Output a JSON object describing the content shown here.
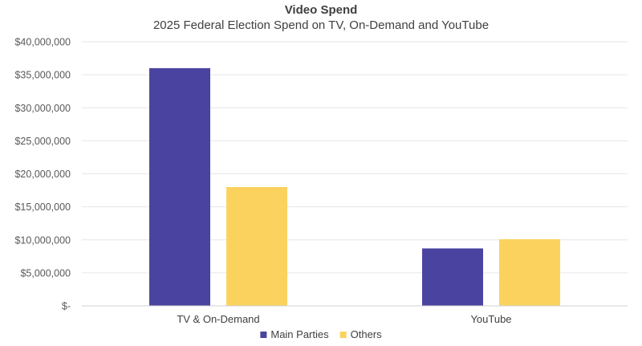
{
  "chart_data": {
    "type": "bar",
    "title": "Video Spend",
    "subtitle": "2025 Federal Election Spend on TV, On-Demand and YouTube",
    "xlabel": "",
    "ylabel": "",
    "categories": [
      "TV & On-Demand",
      "YouTube"
    ],
    "series": [
      {
        "name": "Main Parties",
        "color": "#4a44a0",
        "values": [
          36000000,
          8700000
        ]
      },
      {
        "name": "Others",
        "color": "#fcd25f",
        "values": [
          18000000,
          10100000
        ]
      }
    ],
    "ylim": [
      0,
      40000000
    ],
    "yticks": [
      0,
      5000000,
      10000000,
      15000000,
      20000000,
      25000000,
      30000000,
      35000000,
      40000000
    ],
    "ytick_labels": [
      "$-",
      "$5,000,000",
      "$10,000,000",
      "$15,000,000",
      "$20,000,000",
      "$25,000,000",
      "$30,000,000",
      "$35,000,000",
      "$40,000,000"
    ],
    "grid": true,
    "legend_position": "bottom"
  }
}
